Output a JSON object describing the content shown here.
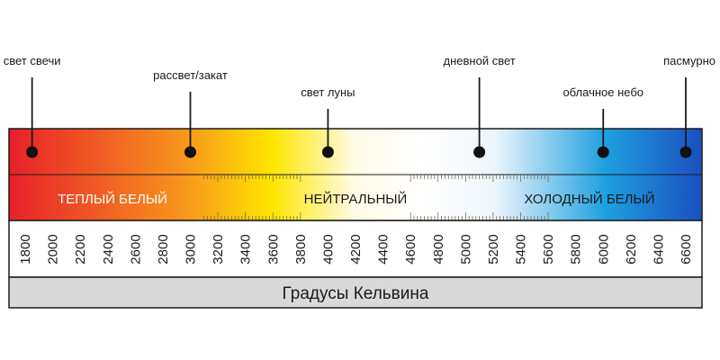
{
  "markers": [
    {
      "label": "свет свечи",
      "kelvin": 1850
    },
    {
      "label": "рассвет/закат",
      "kelvin": 3000
    },
    {
      "label": "свет луны",
      "kelvin": 4000
    },
    {
      "label": "дневной свет",
      "kelvin": 5100
    },
    {
      "label": "облачное небо",
      "kelvin": 6000
    },
    {
      "label": "пасмурно",
      "kelvin": 6600
    }
  ],
  "zones": [
    {
      "label": "ТЕПЛЫЙ БЕЛЫЙ",
      "color": "#ffffff"
    },
    {
      "label": "НЕЙТРАЛЬНЫЙ",
      "color": "#1a1a1a"
    },
    {
      "label": "ХОЛОДНЫЙ БЕЛЫЙ",
      "color": "#1a1a1a"
    }
  ],
  "scale": {
    "min": 1800,
    "max": 6600,
    "step": 200,
    "ticks": [
      "1800",
      "2000",
      "2200",
      "2400",
      "2600",
      "2800",
      "3000",
      "3200",
      "3400",
      "3600",
      "3800",
      "4000",
      "4200",
      "4400",
      "4600",
      "4800",
      "5000",
      "5200",
      "5400",
      "5600",
      "5800",
      "6000",
      "6200",
      "6400",
      "6600"
    ]
  },
  "caption": "Градусы Кельвина",
  "colors": {
    "warm": "#e8202a",
    "orange": "#f7941d",
    "yellow": "#ffe600",
    "neutral": "#ffffff",
    "cool": "#1ea0e0",
    "deep_blue": "#1a4fc0",
    "caption_bg": "#d9d9d9",
    "marker_dot": "#111111"
  }
}
